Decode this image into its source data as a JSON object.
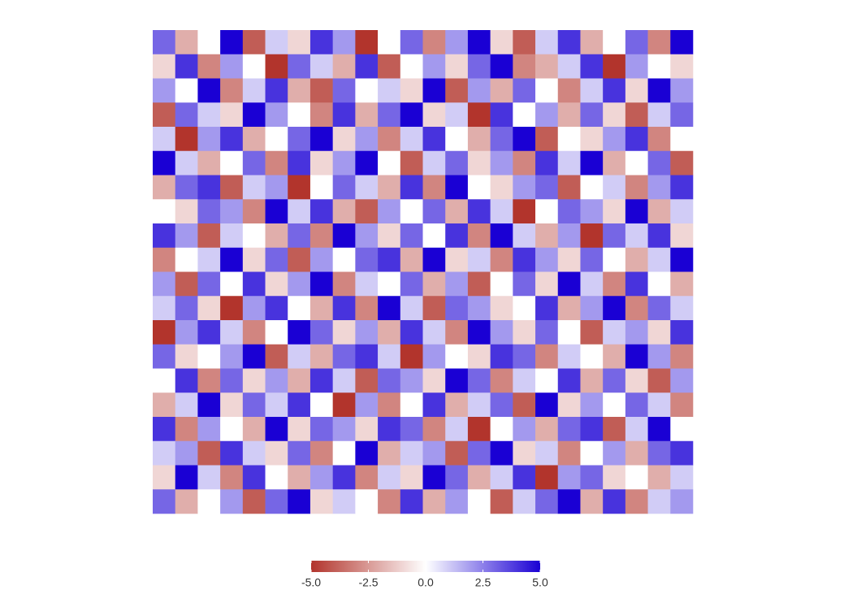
{
  "chart_data": {
    "type": "heatmap",
    "z": [
      [
        3,
        -2,
        0,
        5,
        -4,
        1,
        -1,
        4,
        2,
        -5,
        0,
        3,
        -3,
        2,
        5,
        -1,
        -4,
        1,
        4,
        -2,
        0,
        3,
        -3,
        5
      ],
      [
        -1,
        4,
        -3,
        2,
        0,
        -5,
        3,
        1,
        -2,
        4,
        -4,
        0,
        2,
        -1,
        3,
        5,
        -3,
        -2,
        1,
        4,
        -5,
        2,
        0,
        -1
      ],
      [
        2,
        0,
        5,
        -3,
        1,
        4,
        -2,
        -4,
        3,
        0,
        1,
        -1,
        5,
        -4,
        2,
        -2,
        3,
        0,
        -3,
        1,
        4,
        -1,
        5,
        2
      ],
      [
        -4,
        3,
        1,
        -1,
        5,
        2,
        0,
        -3,
        4,
        -2,
        3,
        5,
        -1,
        1,
        -5,
        4,
        0,
        2,
        -2,
        3,
        -1,
        -4,
        1,
        3
      ],
      [
        1,
        -5,
        2,
        4,
        -2,
        0,
        3,
        5,
        -1,
        2,
        -3,
        1,
        4,
        0,
        -2,
        3,
        5,
        -4,
        0,
        -1,
        2,
        4,
        -3,
        0
      ],
      [
        5,
        1,
        -2,
        0,
        3,
        -3,
        4,
        -1,
        2,
        5,
        0,
        -4,
        1,
        3,
        -1,
        2,
        -3,
        4,
        1,
        5,
        -2,
        0,
        3,
        -4
      ],
      [
        -2,
        3,
        4,
        -4,
        1,
        2,
        -5,
        0,
        3,
        1,
        -2,
        4,
        -3,
        5,
        0,
        -1,
        2,
        3,
        -4,
        0,
        1,
        -3,
        2,
        4
      ],
      [
        0,
        -1,
        3,
        2,
        -3,
        5,
        1,
        4,
        -2,
        -4,
        2,
        0,
        3,
        -2,
        4,
        1,
        -5,
        0,
        3,
        2,
        -1,
        5,
        -2,
        1
      ],
      [
        4,
        2,
        -4,
        1,
        0,
        -2,
        3,
        -3,
        5,
        2,
        -1,
        3,
        0,
        4,
        -3,
        5,
        1,
        -2,
        2,
        -5,
        3,
        1,
        4,
        -1
      ],
      [
        -3,
        0,
        1,
        5,
        -1,
        3,
        -4,
        2,
        0,
        3,
        4,
        -2,
        5,
        -1,
        1,
        -3,
        4,
        2,
        -1,
        3,
        0,
        -2,
        1,
        5
      ],
      [
        2,
        -4,
        3,
        0,
        4,
        -1,
        2,
        5,
        -3,
        1,
        0,
        3,
        -2,
        2,
        -4,
        0,
        3,
        -1,
        5,
        1,
        -3,
        4,
        0,
        -2
      ],
      [
        1,
        3,
        -1,
        -5,
        2,
        4,
        0,
        -2,
        4,
        -3,
        5,
        1,
        -4,
        3,
        2,
        -1,
        0,
        4,
        -2,
        2,
        5,
        -3,
        3,
        1
      ],
      [
        -5,
        2,
        4,
        1,
        -3,
        0,
        5,
        3,
        -1,
        2,
        -2,
        4,
        1,
        -3,
        5,
        2,
        -1,
        3,
        0,
        -4,
        1,
        2,
        -1,
        4
      ],
      [
        3,
        -1,
        0,
        2,
        5,
        -4,
        1,
        -2,
        3,
        4,
        1,
        -5,
        2,
        0,
        -1,
        4,
        3,
        -3,
        1,
        0,
        -2,
        5,
        2,
        -3
      ],
      [
        0,
        4,
        -3,
        3,
        -1,
        2,
        -2,
        4,
        1,
        -4,
        3,
        2,
        -1,
        5,
        3,
        -3,
        1,
        0,
        4,
        -2,
        3,
        -1,
        -4,
        2
      ],
      [
        -2,
        1,
        5,
        -1,
        3,
        1,
        4,
        0,
        -5,
        2,
        -3,
        0,
        4,
        -2,
        1,
        3,
        -4,
        5,
        -1,
        2,
        0,
        3,
        1,
        -3
      ],
      [
        4,
        -3,
        2,
        0,
        -2,
        5,
        -1,
        3,
        2,
        -1,
        4,
        3,
        -3,
        1,
        -5,
        0,
        2,
        -2,
        3,
        4,
        -4,
        1,
        5,
        0
      ],
      [
        1,
        2,
        -4,
        4,
        1,
        -1,
        3,
        -3,
        0,
        5,
        -2,
        1,
        2,
        -4,
        3,
        5,
        -1,
        1,
        -3,
        0,
        2,
        -2,
        3,
        4
      ],
      [
        -1,
        5,
        1,
        -3,
        4,
        0,
        -2,
        2,
        4,
        -3,
        1,
        -1,
        5,
        3,
        -2,
        1,
        4,
        -5,
        2,
        3,
        -1,
        0,
        -2,
        1
      ],
      [
        3,
        -2,
        0,
        2,
        -4,
        3,
        5,
        -1,
        1,
        0,
        -3,
        4,
        -2,
        2,
        0,
        -4,
        1,
        3,
        5,
        -2,
        4,
        -3,
        1,
        2
      ]
    ],
    "zlim": [
      -5,
      5
    ],
    "colors": {
      "low": "#b2342c",
      "mid": "#ffffff",
      "high": "#1a00d4"
    },
    "colorbar_ticks": [
      {
        "value": -5,
        "label": "-5.0"
      },
      {
        "value": -2.5,
        "label": "-2.5"
      },
      {
        "value": 0,
        "label": "0.0"
      },
      {
        "value": 2.5,
        "label": "2.5"
      },
      {
        "value": 5,
        "label": "5.0"
      }
    ],
    "legend_position": "bottom"
  }
}
